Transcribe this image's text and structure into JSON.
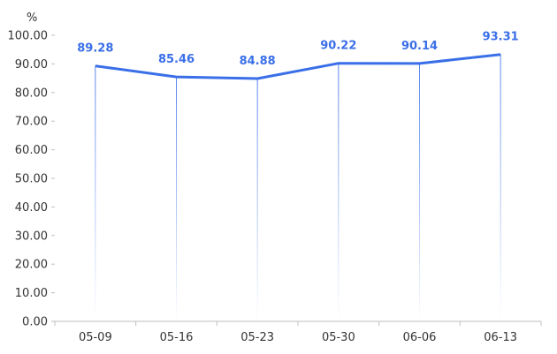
{
  "chart_data": {
    "type": "line",
    "ylabel": "%",
    "categories": [
      "05-09",
      "05-16",
      "05-23",
      "05-30",
      "06-06",
      "06-13"
    ],
    "series": [
      {
        "values": [
          89.28,
          85.46,
          84.88,
          90.22,
          90.14,
          93.31
        ]
      }
    ],
    "data_labels": [
      "89.28",
      "85.46",
      "84.88",
      "90.22",
      "90.14",
      "93.31"
    ],
    "yticks": [
      "0.00",
      "10.00",
      "20.00",
      "30.00",
      "40.00",
      "50.00",
      "60.00",
      "70.00",
      "80.00",
      "90.00",
      "100.00"
    ],
    "ylim": [
      0,
      100
    ],
    "grid": false,
    "legend": "none",
    "colors": {
      "line": "#3a6fe8",
      "label": "#3a6fe8",
      "axis": "#bfbfbf",
      "text": "#333333"
    }
  }
}
